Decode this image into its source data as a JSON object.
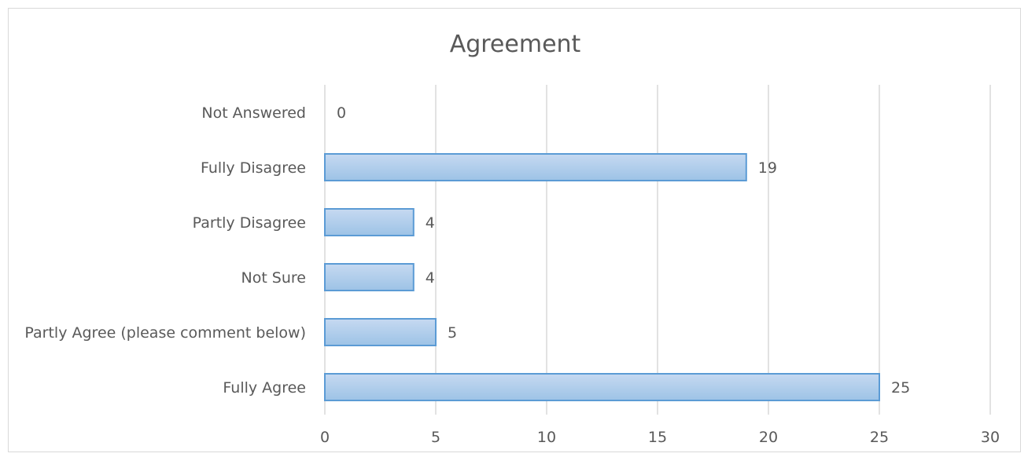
{
  "chart_data": {
    "type": "bar",
    "orientation": "horizontal",
    "title": "Agreement",
    "categories": [
      "Not Answered",
      "Fully Disagree",
      "Partly Disagree",
      "Not Sure",
      "Partly Agree (please comment below)",
      "Fully Agree"
    ],
    "values": [
      0,
      19,
      4,
      4,
      5,
      25
    ],
    "xlim": [
      0,
      30
    ],
    "xticks": [
      "0",
      "5",
      "10",
      "15",
      "20",
      "25",
      "30"
    ],
    "grid": true,
    "legend": "none",
    "colors": {
      "bar_fill_top": "#c6d9f1",
      "bar_fill_bottom": "#9dc3e6",
      "bar_stroke": "#5b9bd5",
      "grid": "#d9d9d9",
      "text": "#595959"
    }
  }
}
